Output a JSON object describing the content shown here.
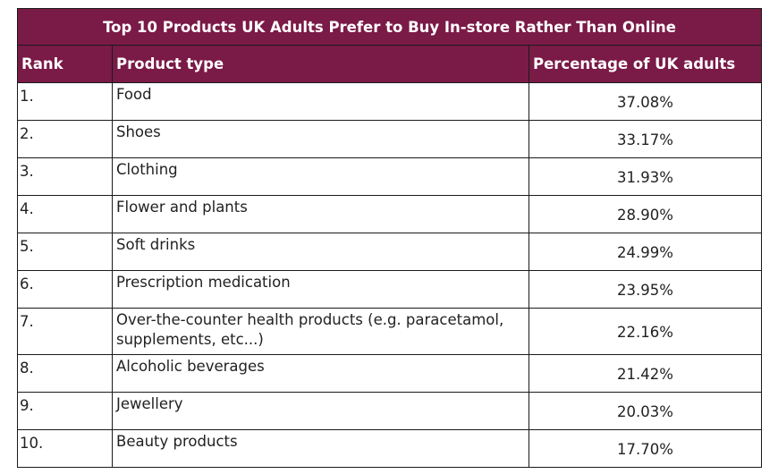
{
  "chart_data": {
    "type": "table",
    "title": "Top 10 Products UK Adults Prefer to Buy In-store Rather Than Online",
    "columns": [
      "Rank",
      "Product type",
      "Percentage of UK adults"
    ],
    "rows": [
      {
        "rank": "1.",
        "product": "Food",
        "percentage": "37.08%"
      },
      {
        "rank": "2.",
        "product": "Shoes",
        "percentage": "33.17%"
      },
      {
        "rank": "3.",
        "product": "Clothing",
        "percentage": "31.93%"
      },
      {
        "rank": "4.",
        "product": "Flower and plants",
        "percentage": "28.90%"
      },
      {
        "rank": "5.",
        "product": "Soft drinks",
        "percentage": "24.99%"
      },
      {
        "rank": "6.",
        "product": "Prescription medication",
        "percentage": "23.95%"
      },
      {
        "rank": "7.",
        "product": "Over-the-counter health products (e.g. paracetamol, supplements, etc...)",
        "percentage": "22.16%"
      },
      {
        "rank": "8.",
        "product": "Alcoholic beverages",
        "percentage": "21.42%"
      },
      {
        "rank": "9.",
        "product": "Jewellery",
        "percentage": "20.03%"
      },
      {
        "rank": "10.",
        "product": "Beauty products",
        "percentage": "17.70%"
      }
    ],
    "values": [
      37.08,
      33.17,
      31.93,
      28.9,
      24.99,
      23.95,
      22.16,
      21.42,
      20.03,
      17.7
    ]
  },
  "colors": {
    "header_background": "#7a1a47",
    "header_text": "#ffffff",
    "border": "#1a1a1a"
  }
}
